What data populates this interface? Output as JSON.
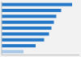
{
  "chart_data": {
    "type": "bar",
    "orientation": "horizontal",
    "categories": [
      null,
      null,
      null,
      null,
      null,
      null,
      null,
      null,
      null
    ],
    "values": [
      29.0,
      24.5,
      22.5,
      21.5,
      20.5,
      19.5,
      17.5,
      14.0,
      9.0
    ],
    "colors": [
      "#2577c8",
      "#2577c8",
      "#2577c8",
      "#2577c8",
      "#2577c8",
      "#2577c8",
      "#2577c8",
      "#2577c8",
      "#aac8e8"
    ],
    "xlim": [
      0,
      32
    ],
    "tick_labels": false,
    "grid": false
  }
}
